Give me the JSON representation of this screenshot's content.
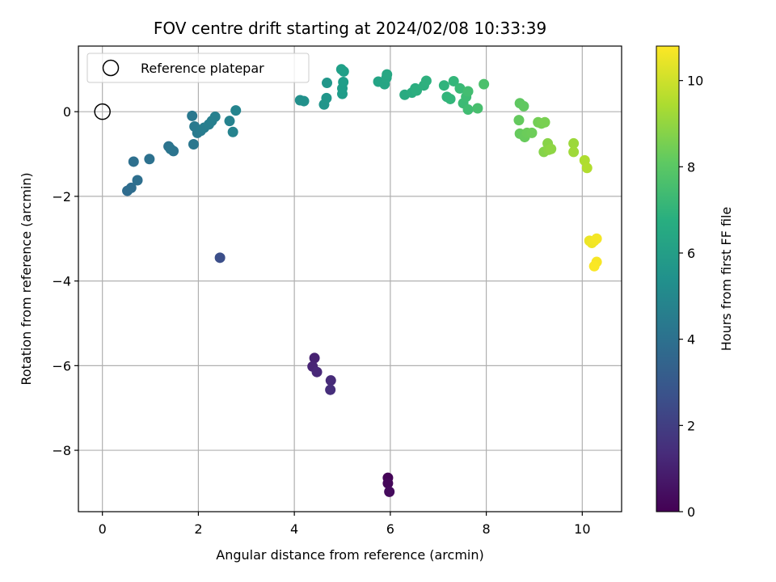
{
  "chart_data": {
    "type": "scatter",
    "title": "FOV centre drift starting at 2024/02/08 10:33:39",
    "xlabel": "Angular distance from reference (arcmin)",
    "ylabel": "Rotation from reference (arcmin)",
    "xlim": [
      -0.5,
      10.82
    ],
    "ylim": [
      -9.45,
      1.55
    ],
    "x_ticks": [
      0,
      2,
      4,
      6,
      8,
      10
    ],
    "y_ticks": [
      -8,
      -6,
      -4,
      -2,
      0
    ],
    "grid": true,
    "legend": {
      "position": "upper-left",
      "entries": [
        "Reference platepar"
      ]
    },
    "reference_point": {
      "label": "Reference platepar",
      "x": 0,
      "y": 0,
      "marker": "hollow-circle"
    },
    "colorbar": {
      "label": "Hours from first FF file",
      "colormap": "viridis",
      "range": [
        0,
        10.8
      ],
      "ticks": [
        0,
        2,
        4,
        6,
        8,
        10
      ]
    },
    "points": [
      {
        "x": 5.95,
        "y": -8.65,
        "c": 0.1
      },
      {
        "x": 5.95,
        "y": -8.78,
        "c": 0.2
      },
      {
        "x": 5.98,
        "y": -8.98,
        "c": 0.3
      },
      {
        "x": 4.42,
        "y": -5.82,
        "c": 1.0
      },
      {
        "x": 4.38,
        "y": -6.02,
        "c": 1.1
      },
      {
        "x": 4.47,
        "y": -6.15,
        "c": 1.2
      },
      {
        "x": 4.76,
        "y": -6.35,
        "c": 1.3
      },
      {
        "x": 4.75,
        "y": -6.57,
        "c": 1.4
      },
      {
        "x": 2.45,
        "y": -3.45,
        "c": 2.6
      },
      {
        "x": 0.52,
        "y": -1.87,
        "c": 3.8
      },
      {
        "x": 0.6,
        "y": -1.8,
        "c": 3.85
      },
      {
        "x": 0.73,
        "y": -1.62,
        "c": 3.9
      },
      {
        "x": 0.65,
        "y": -1.18,
        "c": 3.95
      },
      {
        "x": 0.98,
        "y": -1.12,
        "c": 4.0
      },
      {
        "x": 1.38,
        "y": -0.82,
        "c": 4.1
      },
      {
        "x": 1.48,
        "y": -0.93,
        "c": 4.15
      },
      {
        "x": 1.42,
        "y": -0.88,
        "c": 4.2
      },
      {
        "x": 1.9,
        "y": -0.77,
        "c": 4.3
      },
      {
        "x": 1.87,
        "y": -0.1,
        "c": 4.35
      },
      {
        "x": 1.92,
        "y": -0.35,
        "c": 4.4
      },
      {
        "x": 1.98,
        "y": -0.5,
        "c": 4.45
      },
      {
        "x": 2.05,
        "y": -0.45,
        "c": 4.5
      },
      {
        "x": 2.12,
        "y": -0.38,
        "c": 4.55
      },
      {
        "x": 2.22,
        "y": -0.3,
        "c": 4.6
      },
      {
        "x": 2.28,
        "y": -0.22,
        "c": 4.65
      },
      {
        "x": 2.35,
        "y": -0.12,
        "c": 4.7
      },
      {
        "x": 2.65,
        "y": -0.22,
        "c": 4.8
      },
      {
        "x": 2.72,
        "y": -0.48,
        "c": 4.85
      },
      {
        "x": 2.78,
        "y": 0.03,
        "c": 4.9
      },
      {
        "x": 4.12,
        "y": 0.27,
        "c": 5.4
      },
      {
        "x": 4.2,
        "y": 0.25,
        "c": 5.45
      },
      {
        "x": 4.62,
        "y": 0.17,
        "c": 5.6
      },
      {
        "x": 4.67,
        "y": 0.32,
        "c": 5.65
      },
      {
        "x": 4.68,
        "y": 0.68,
        "c": 5.7
      },
      {
        "x": 5.0,
        "y": 0.42,
        "c": 5.9
      },
      {
        "x": 5.0,
        "y": 0.55,
        "c": 5.95
      },
      {
        "x": 5.02,
        "y": 0.7,
        "c": 6.0
      },
      {
        "x": 5.03,
        "y": 0.95,
        "c": 6.05
      },
      {
        "x": 4.98,
        "y": 1.0,
        "c": 6.1
      },
      {
        "x": 5.75,
        "y": 0.71,
        "c": 6.3
      },
      {
        "x": 5.88,
        "y": 0.65,
        "c": 6.35
      },
      {
        "x": 5.92,
        "y": 0.8,
        "c": 6.4
      },
      {
        "x": 5.93,
        "y": 0.88,
        "c": 6.45
      },
      {
        "x": 6.3,
        "y": 0.4,
        "c": 6.6
      },
      {
        "x": 6.45,
        "y": 0.45,
        "c": 6.65
      },
      {
        "x": 6.52,
        "y": 0.55,
        "c": 6.7
      },
      {
        "x": 6.55,
        "y": 0.5,
        "c": 6.75
      },
      {
        "x": 6.7,
        "y": 0.62,
        "c": 6.8
      },
      {
        "x": 6.75,
        "y": 0.73,
        "c": 6.85
      },
      {
        "x": 7.12,
        "y": 0.62,
        "c": 7.0
      },
      {
        "x": 7.18,
        "y": 0.35,
        "c": 7.05
      },
      {
        "x": 7.25,
        "y": 0.3,
        "c": 7.1
      },
      {
        "x": 7.32,
        "y": 0.72,
        "c": 7.15
      },
      {
        "x": 7.45,
        "y": 0.55,
        "c": 7.3
      },
      {
        "x": 7.52,
        "y": 0.2,
        "c": 7.35
      },
      {
        "x": 7.58,
        "y": 0.35,
        "c": 7.4
      },
      {
        "x": 7.62,
        "y": 0.05,
        "c": 7.45
      },
      {
        "x": 7.62,
        "y": 0.48,
        "c": 7.5
      },
      {
        "x": 7.82,
        "y": 0.08,
        "c": 7.6
      },
      {
        "x": 7.95,
        "y": 0.65,
        "c": 7.7
      },
      {
        "x": 8.7,
        "y": 0.2,
        "c": 8.1
      },
      {
        "x": 8.78,
        "y": 0.13,
        "c": 8.15
      },
      {
        "x": 8.68,
        "y": -0.2,
        "c": 8.2
      },
      {
        "x": 8.7,
        "y": -0.52,
        "c": 8.25
      },
      {
        "x": 8.8,
        "y": -0.6,
        "c": 8.3
      },
      {
        "x": 8.85,
        "y": -0.5,
        "c": 8.35
      },
      {
        "x": 8.95,
        "y": -0.5,
        "c": 8.4
      },
      {
        "x": 9.08,
        "y": -0.25,
        "c": 8.5
      },
      {
        "x": 9.15,
        "y": -0.28,
        "c": 8.55
      },
      {
        "x": 9.22,
        "y": -0.25,
        "c": 8.6
      },
      {
        "x": 9.2,
        "y": -0.95,
        "c": 8.8
      },
      {
        "x": 9.28,
        "y": -0.75,
        "c": 8.85
      },
      {
        "x": 9.3,
        "y": -0.9,
        "c": 8.9
      },
      {
        "x": 9.35,
        "y": -0.88,
        "c": 8.95
      },
      {
        "x": 9.82,
        "y": -0.75,
        "c": 9.2
      },
      {
        "x": 9.82,
        "y": -0.95,
        "c": 9.25
      },
      {
        "x": 10.05,
        "y": -1.15,
        "c": 9.5
      },
      {
        "x": 10.1,
        "y": -1.33,
        "c": 9.55
      },
      {
        "x": 10.15,
        "y": -3.05,
        "c": 10.5
      },
      {
        "x": 10.2,
        "y": -3.1,
        "c": 10.55
      },
      {
        "x": 10.25,
        "y": -3.05,
        "c": 10.6
      },
      {
        "x": 10.3,
        "y": -3.0,
        "c": 10.65
      },
      {
        "x": 10.3,
        "y": -3.55,
        "c": 10.7
      },
      {
        "x": 10.25,
        "y": -3.65,
        "c": 10.75
      }
    ]
  }
}
